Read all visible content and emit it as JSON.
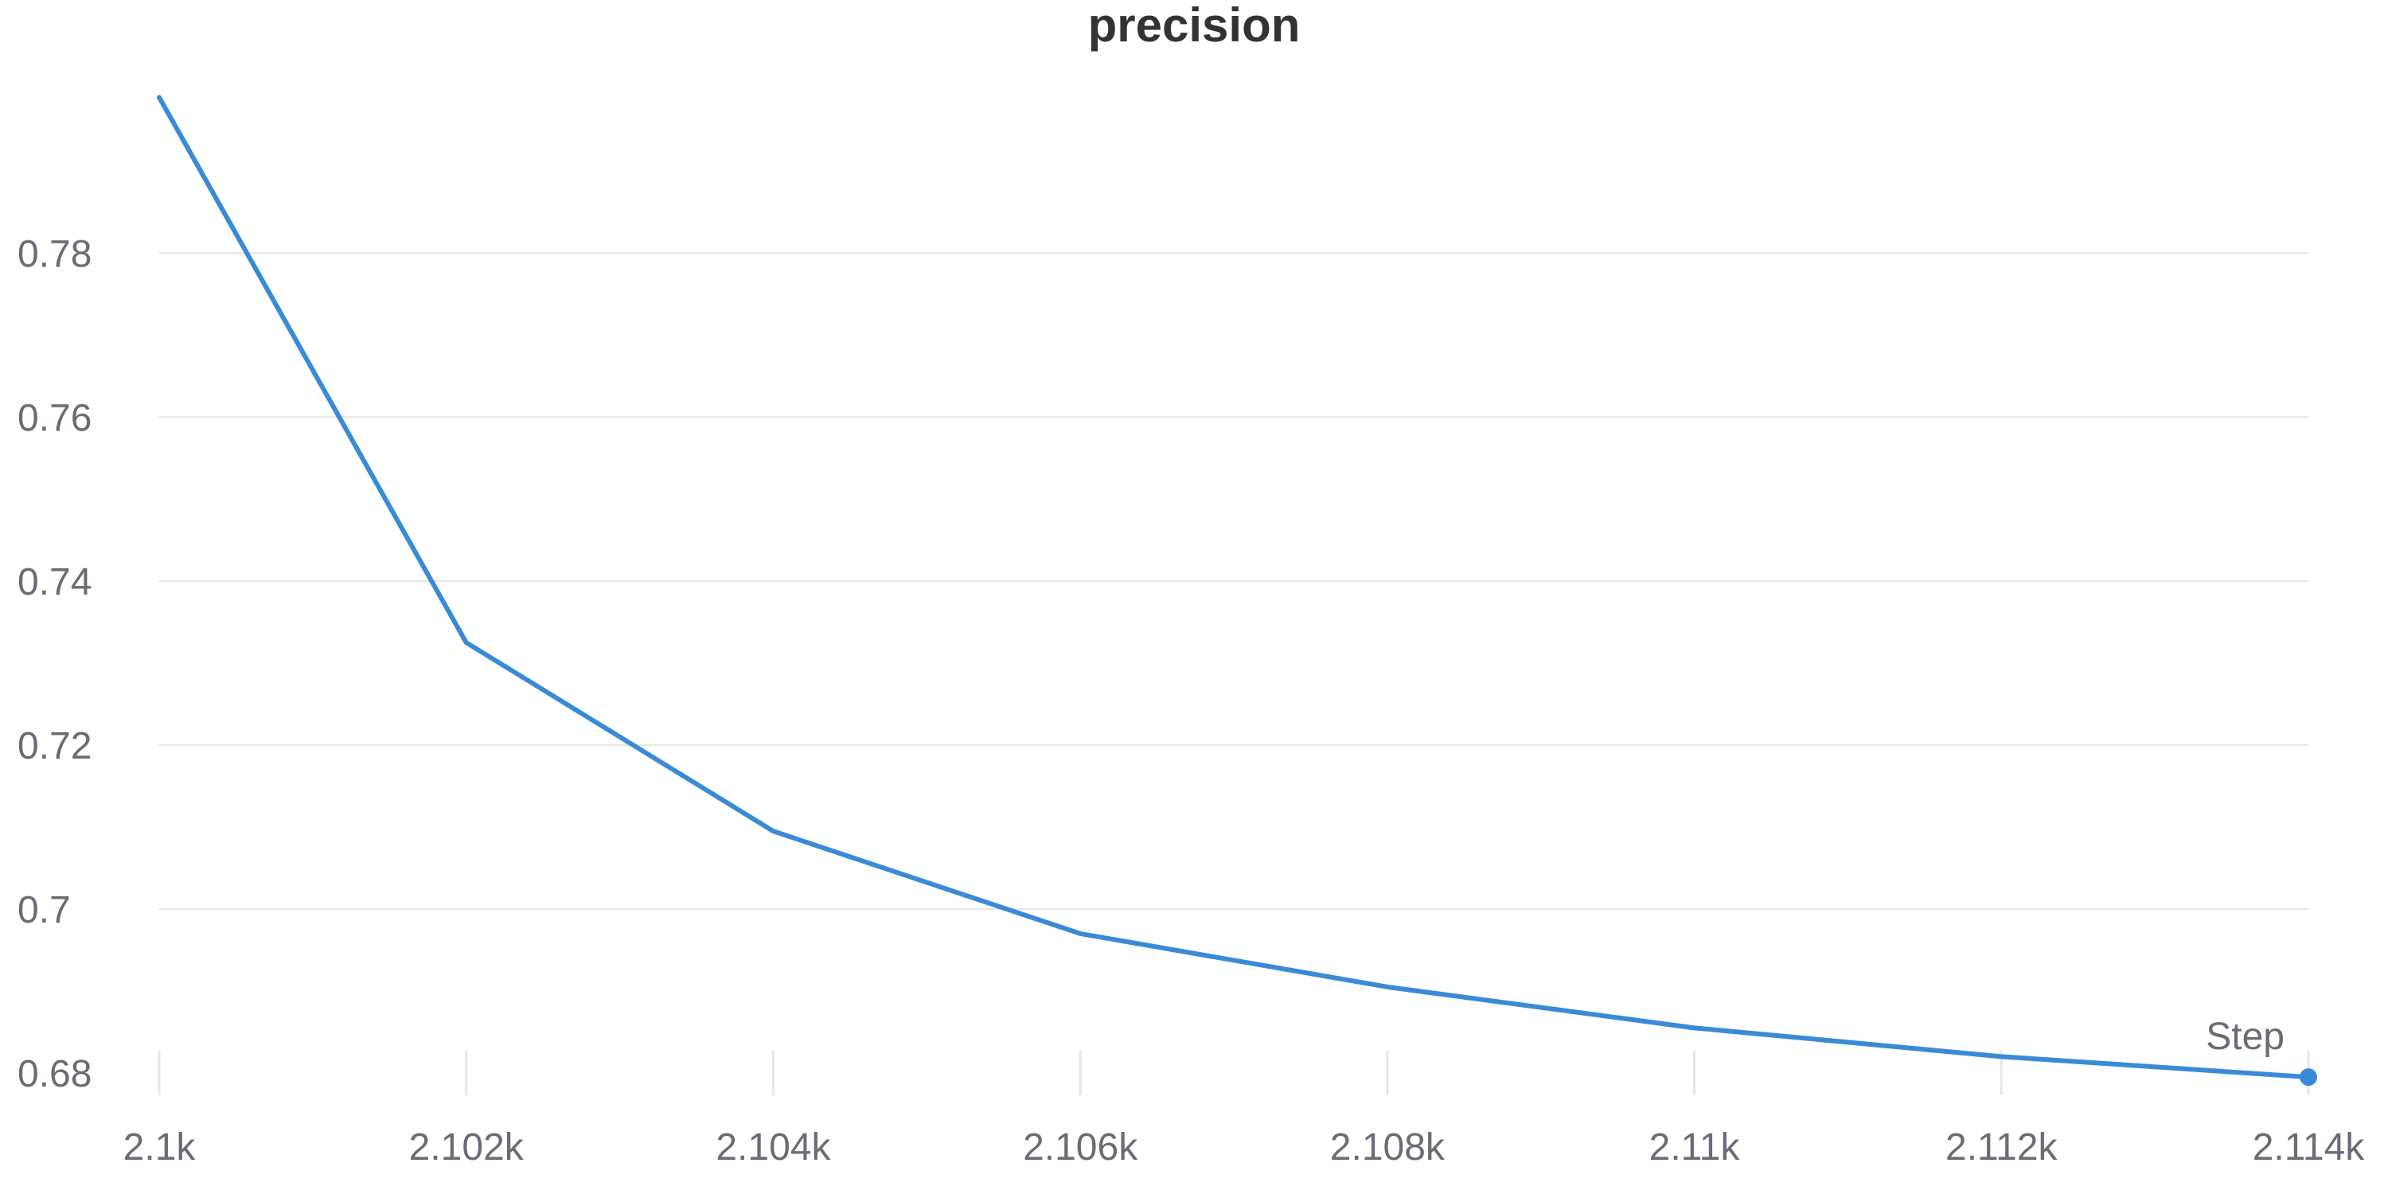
{
  "chart_data": {
    "type": "line",
    "title": "precision",
    "xlabel": "Step",
    "ylabel": "",
    "x": [
      2100,
      2102,
      2104,
      2106,
      2108,
      2110,
      2112,
      2114
    ],
    "series": [
      {
        "values": [
          0.799,
          0.7325,
          0.7095,
          0.697,
          0.6905,
          0.6855,
          0.682,
          0.6795
        ]
      }
    ],
    "xlim": [
      2100,
      2114
    ],
    "ylim": [
      0.68,
      0.8
    ],
    "x_ticks": [
      2100,
      2102,
      2104,
      2106,
      2108,
      2110,
      2112,
      2114
    ],
    "x_tick_labels": [
      "2.1k",
      "2.102k",
      "2.104k",
      "2.106k",
      "2.108k",
      "2.11k",
      "2.112k",
      "2.114k"
    ],
    "y_ticks": [
      0.68,
      0.7,
      0.72,
      0.74,
      0.76,
      0.78
    ],
    "y_tick_labels": [
      "0.68",
      "0.7",
      "0.72",
      "0.74",
      "0.76",
      "0.78"
    ],
    "grid": "horizontal",
    "line_color": "#3a8bd6",
    "grid_color": "#e6e6e6",
    "text_color": "#6b6b76",
    "title_color": "#333333"
  }
}
